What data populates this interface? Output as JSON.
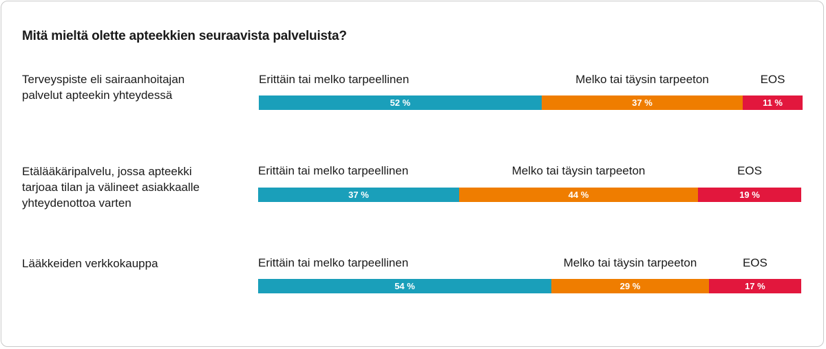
{
  "colors": {
    "positive": "#1a9fba",
    "negative": "#ef7d00",
    "eos": "#e2173d"
  },
  "chart_data": {
    "type": "bar",
    "orientation": "horizontal-stacked-100",
    "title": "Mitä mieltä olette apteekkien seuraavista palveluista?",
    "legend": [
      "Erittäin tai melko tarpeellinen",
      "Melko tai täysin tarpeeton",
      "EOS"
    ],
    "rows": [
      {
        "label_lines": [
          "Terveyspiste eli sairaanhoitajan",
          "palvelut apteekin yhteydessä"
        ],
        "series": [
          {
            "name": "Erittäin tai melko tarpeellinen",
            "value": 52,
            "text": "52 %"
          },
          {
            "name": "Melko tai täysin tarpeeton",
            "value": 37,
            "text": "37 %"
          },
          {
            "name": "EOS",
            "value": 11,
            "text": "11 %"
          }
        ]
      },
      {
        "label_lines": [
          "Etälääkäripalvelu, jossa apteekki",
          "tarjoaa tilan ja välineet asiakkaalle",
          "yhteydenottoa varten"
        ],
        "series": [
          {
            "name": "Erittäin tai melko tarpeellinen",
            "value": 37,
            "text": "37 %"
          },
          {
            "name": "Melko tai täysin tarpeeton",
            "value": 44,
            "text": "44 %"
          },
          {
            "name": "EOS",
            "value": 19,
            "text": "19 %"
          }
        ]
      },
      {
        "label_lines": [
          "Lääkkeiden verkkokauppa"
        ],
        "series": [
          {
            "name": "Erittäin tai melko tarpeellinen",
            "value": 54,
            "text": "54 %"
          },
          {
            "name": "Melko tai täysin tarpeeton",
            "value": 29,
            "text": "29 %"
          },
          {
            "name": "EOS",
            "value": 17,
            "text": "17 %"
          }
        ]
      }
    ]
  }
}
